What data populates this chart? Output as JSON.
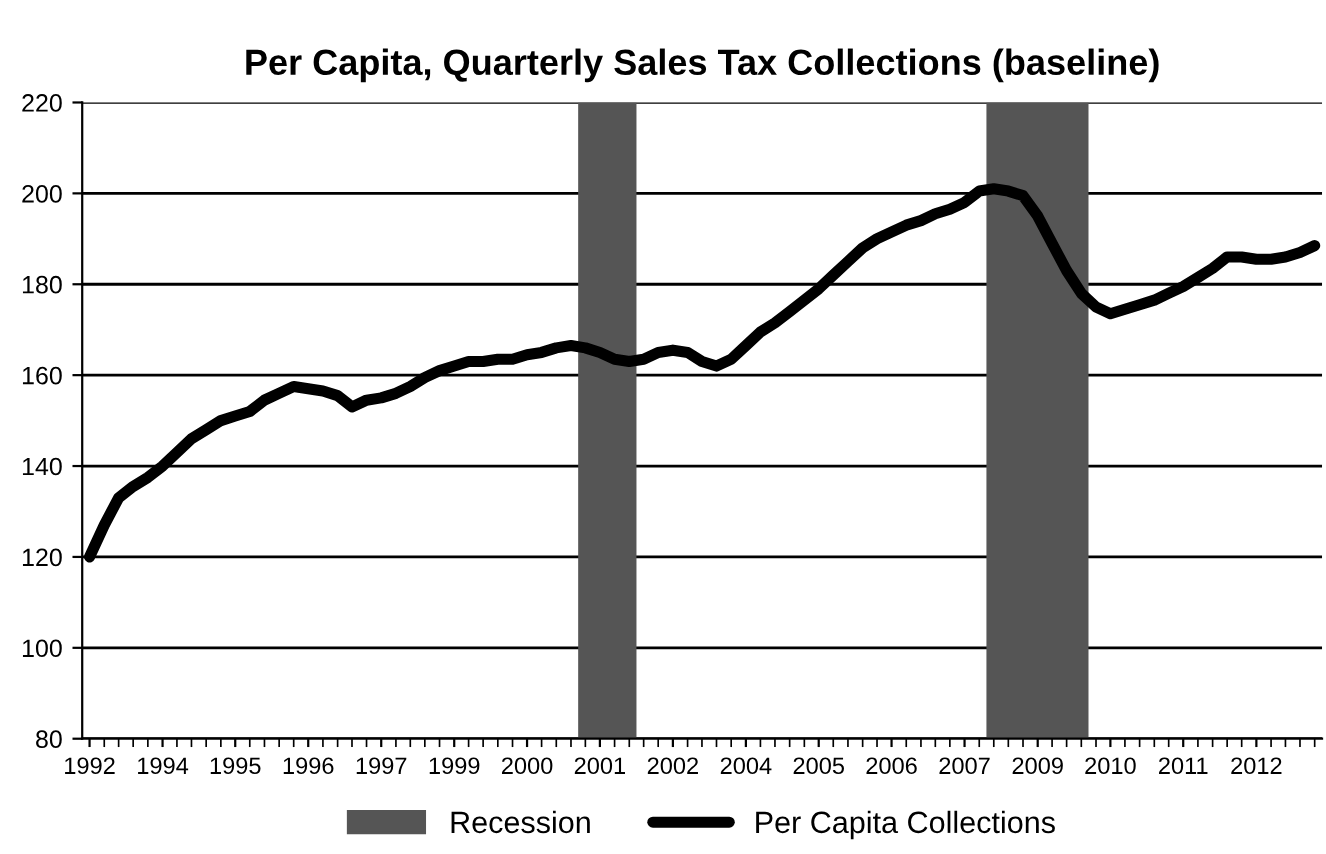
{
  "chart_data": {
    "type": "line",
    "title": "Per Capita, Quarterly Sales Tax Collections (baseline)",
    "x": [
      "1992-10",
      "1993-01",
      "1993-04",
      "1993-07",
      "1993-10",
      "1994-01",
      "1994-04",
      "1994-07",
      "1994-10",
      "1995-01",
      "1995-04",
      "1995-07",
      "1995-10",
      "1996-01",
      "1996-04",
      "1996-07",
      "1996-10",
      "1997-01",
      "1997-04",
      "1997-07",
      "1997-10",
      "1998-01",
      "1998-04",
      "1998-07",
      "1998-10",
      "1999-01",
      "1999-04",
      "1999-07",
      "1999-10",
      "2000-01",
      "2000-04",
      "2000-07",
      "2000-10",
      "2001-01",
      "2001-04",
      "2001-07",
      "2001-10",
      "2002-01",
      "2002-04",
      "2002-07",
      "2002-10",
      "2003-01",
      "2003-04",
      "2003-07",
      "2003-10",
      "2004-01",
      "2004-04",
      "2004-07",
      "2004-10",
      "2005-01",
      "2005-04",
      "2005-07",
      "2005-10",
      "2006-01",
      "2006-04",
      "2006-07",
      "2006-10",
      "2007-01",
      "2007-04",
      "2007-07",
      "2007-10",
      "2008-01",
      "2008-04",
      "2008-07",
      "2008-10",
      "2009-01",
      "2009-04",
      "2009-07",
      "2009-10",
      "2010-01",
      "2010-04",
      "2010-07",
      "2010-10",
      "2011-01",
      "2011-04",
      "2011-07",
      "2011-10",
      "2012-01",
      "2012-04",
      "2012-07",
      "2012-10",
      "2013-01",
      "2013-04",
      "2013-07",
      "2013-10"
    ],
    "xlim": [
      "1992-08-16",
      "2013-11-16"
    ],
    "xticks": [
      {
        "value": "1992-10",
        "label": "1992"
      },
      {
        "value": "1994-01",
        "label": "1994"
      },
      {
        "value": "1995-04",
        "label": "1995"
      },
      {
        "value": "1996-07",
        "label": "1996"
      },
      {
        "value": "1997-10",
        "label": "1997"
      },
      {
        "value": "1999-01",
        "label": "1999"
      },
      {
        "value": "2000-04",
        "label": "2000"
      },
      {
        "value": "2001-07",
        "label": "2001"
      },
      {
        "value": "2002-10",
        "label": "2002"
      },
      {
        "value": "2004-01",
        "label": "2004"
      },
      {
        "value": "2005-04",
        "label": "2005"
      },
      {
        "value": "2006-07",
        "label": "2006"
      },
      {
        "value": "2007-10",
        "label": "2007"
      },
      {
        "value": "2009-01",
        "label": "2009"
      },
      {
        "value": "2010-04",
        "label": "2010"
      },
      {
        "value": "2011-07",
        "label": "2011"
      },
      {
        "value": "2012-10",
        "label": "2012"
      }
    ],
    "series": [
      {
        "name": "Per Capita Collections",
        "color": "#000000",
        "values": [
          120,
          127,
          133,
          135.5,
          137.5,
          140,
          143,
          146,
          148,
          150,
          151,
          152,
          154.5,
          156,
          157.5,
          157,
          156.5,
          155.5,
          153,
          154.5,
          155,
          156,
          157.5,
          159.5,
          161,
          162,
          163,
          163,
          163.5,
          163.5,
          164.5,
          165,
          166,
          166.5,
          166,
          165,
          163.5,
          163,
          163.5,
          165,
          165.5,
          165,
          163,
          162,
          163.5,
          166.5,
          169.5,
          171.5,
          174,
          176.5,
          179,
          182,
          185,
          188,
          190,
          191.5,
          193,
          194,
          195.5,
          196.5,
          198,
          200.5,
          201,
          200.5,
          199.5,
          195,
          189,
          183,
          178,
          175,
          173.5,
          174.5,
          175.5,
          176.5,
          178,
          179.5,
          181.5,
          183.5,
          186,
          186,
          185.5,
          185.5,
          186,
          187,
          188.5
        ]
      }
    ],
    "bands": [
      {
        "axis": "x",
        "from": "2001-02-15",
        "to": "2002-02-15",
        "label": "Recession",
        "color": "#555555"
      },
      {
        "axis": "x",
        "from": "2008-02-15",
        "to": "2009-11-15",
        "color": "#555555"
      }
    ],
    "ylim": [
      80,
      220
    ],
    "yticks": [
      80,
      100,
      120,
      140,
      160,
      180,
      200,
      220
    ],
    "grid": "y",
    "legend": "bottom",
    "marker": "none",
    "line_style": "solid"
  }
}
